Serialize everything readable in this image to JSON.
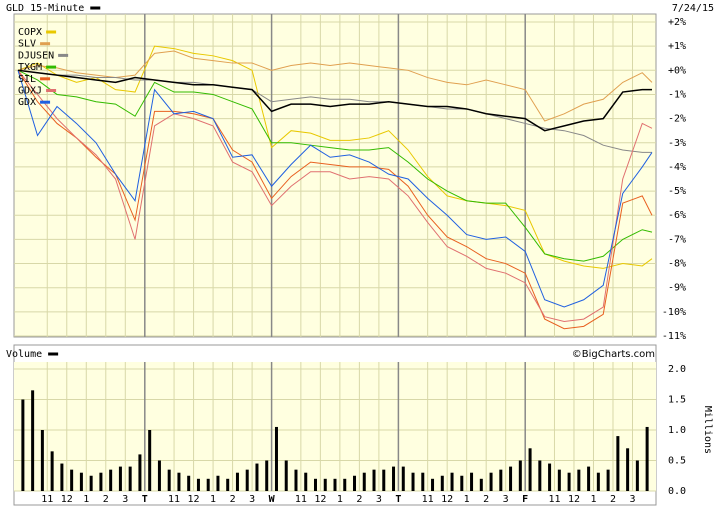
{
  "chart_data": [
    {
      "type": "line",
      "title": "GLD 15-Minute",
      "date": "7/24/15",
      "xlim": [
        0,
        32.5
      ],
      "ylim": [
        -11,
        2
      ],
      "grid": true,
      "yticks": [
        {
          "value": 2,
          "label": "+2%"
        },
        {
          "value": 1,
          "label": "+1%"
        },
        {
          "value": 0,
          "label": "+0%"
        },
        {
          "value": -1,
          "label": "-1%"
        },
        {
          "value": -2,
          "label": "-2%"
        },
        {
          "value": -3,
          "label": "-3%"
        },
        {
          "value": -4,
          "label": "-4%"
        },
        {
          "value": -5,
          "label": "-5%"
        },
        {
          "value": -6,
          "label": "-6%"
        },
        {
          "value": -7,
          "label": "-7%"
        },
        {
          "value": -8,
          "label": "-8%"
        },
        {
          "value": -9,
          "label": "-9%"
        },
        {
          "value": -10,
          "label": "-10%"
        },
        {
          "value": -11,
          "label": "-11%"
        }
      ],
      "x": [
        0,
        1,
        2,
        3,
        4,
        5,
        6,
        7,
        8,
        9,
        10,
        11,
        12,
        13,
        14,
        15,
        16,
        17,
        18,
        19,
        20,
        21,
        22,
        23,
        24,
        25,
        26,
        27,
        28,
        29,
        30,
        31,
        32,
        32.5
      ],
      "series": [
        {
          "name": "COPX",
          "color": "#e8c800",
          "values": [
            0,
            0.3,
            -0.2,
            -0.5,
            -0.3,
            -0.8,
            -0.9,
            1.0,
            0.9,
            0.7,
            0.6,
            0.4,
            0.0,
            -3.2,
            -2.5,
            -2.6,
            -2.9,
            -2.9,
            -2.8,
            -2.5,
            -3.3,
            -4.4,
            -5.2,
            -5.4,
            -5.5,
            -5.6,
            -5.8,
            -7.6,
            -7.9,
            -8.1,
            -8.2,
            -8.0,
            -8.1,
            -7.8
          ]
        },
        {
          "name": "SLV",
          "color": "#e0a050",
          "values": [
            0,
            0.2,
            0.1,
            -0.1,
            -0.2,
            -0.3,
            -0.2,
            0.7,
            0.8,
            0.5,
            0.4,
            0.3,
            0.3,
            0.0,
            0.2,
            0.3,
            0.2,
            0.3,
            0.2,
            0.1,
            0.0,
            -0.3,
            -0.5,
            -0.6,
            -0.4,
            -0.6,
            -0.8,
            -2.1,
            -1.8,
            -1.4,
            -1.2,
            -0.5,
            -0.1,
            -0.5
          ]
        },
        {
          "name": "DJUSEN",
          "color": "#888888",
          "values": [
            0,
            -0.1,
            -0.2,
            -0.2,
            -0.3,
            -0.3,
            -0.4,
            -0.4,
            -0.5,
            -0.5,
            -0.6,
            -0.7,
            -0.8,
            -1.3,
            -1.2,
            -1.1,
            -1.2,
            -1.2,
            -1.3,
            -1.3,
            -1.4,
            -1.5,
            -1.6,
            -1.6,
            -1.8,
            -2.0,
            -2.2,
            -2.4,
            -2.5,
            -2.7,
            -3.1,
            -3.3,
            -3.4,
            -3.4
          ]
        },
        {
          "name": "TXGM",
          "color": "#33bb00",
          "values": [
            0,
            -0.4,
            -1.0,
            -1.1,
            -1.3,
            -1.4,
            -1.9,
            -0.5,
            -0.9,
            -0.9,
            -1.0,
            -1.3,
            -1.6,
            -3.0,
            -3.0,
            -3.1,
            -3.2,
            -3.3,
            -3.3,
            -3.2,
            -3.8,
            -4.5,
            -5.0,
            -5.4,
            -5.5,
            -5.5,
            -6.5,
            -7.6,
            -7.8,
            -7.9,
            -7.7,
            -7.0,
            -6.6,
            -6.7
          ]
        },
        {
          "name": "SIL",
          "color": "#e86020",
          "values": [
            0,
            -1.3,
            -2.2,
            -2.8,
            -3.6,
            -4.3,
            -6.2,
            -1.7,
            -1.7,
            -1.8,
            -2.0,
            -3.3,
            -3.8,
            -5.3,
            -4.4,
            -3.8,
            -3.9,
            -4.0,
            -4.0,
            -4.1,
            -4.8,
            -6.0,
            -6.9,
            -7.3,
            -7.8,
            -8.0,
            -8.4,
            -10.3,
            -10.7,
            -10.6,
            -10.1,
            -5.5,
            -5.2,
            -6.0
          ]
        },
        {
          "name": "GDXJ",
          "color": "#e07070",
          "values": [
            0,
            -1.0,
            -2.0,
            -2.8,
            -3.5,
            -4.5,
            -7.0,
            -2.3,
            -1.8,
            -2.0,
            -2.3,
            -3.8,
            -4.2,
            -5.6,
            -4.8,
            -4.2,
            -4.2,
            -4.5,
            -4.4,
            -4.5,
            -5.2,
            -6.3,
            -7.3,
            -7.7,
            -8.2,
            -8.4,
            -8.8,
            -10.2,
            -10.4,
            -10.3,
            -9.8,
            -4.5,
            -2.2,
            -2.4
          ]
        },
        {
          "name": "GDX",
          "color": "#2060e0",
          "values": [
            0,
            -2.7,
            -1.5,
            -2.2,
            -3.0,
            -4.3,
            -5.4,
            -0.8,
            -1.8,
            -1.7,
            -2.0,
            -3.6,
            -3.5,
            -4.8,
            -3.9,
            -3.1,
            -3.6,
            -3.5,
            -3.8,
            -4.3,
            -4.5,
            -5.3,
            -6.0,
            -6.8,
            -7.0,
            -6.9,
            -7.5,
            -9.5,
            -9.8,
            -9.5,
            -8.9,
            -5.1,
            -4.0,
            -3.4
          ]
        },
        {
          "color": "#000000",
          "values": [
            0,
            -0.1,
            -0.2,
            -0.3,
            -0.4,
            -0.5,
            -0.3,
            -0.4,
            -0.5,
            -0.6,
            -0.6,
            -0.7,
            -0.8,
            -1.7,
            -1.4,
            -1.4,
            -1.5,
            -1.4,
            -1.4,
            -1.3,
            -1.4,
            -1.5,
            -1.5,
            -1.6,
            -1.8,
            -1.9,
            -2.0,
            -2.5,
            -2.3,
            -2.1,
            -2.0,
            -0.9,
            -0.8,
            -0.8
          ]
        }
      ]
    },
    {
      "type": "bar",
      "title": "Volume",
      "source": "©BigCharts.com",
      "ylabel": "Millions",
      "color": "#000000",
      "xlim": [
        0,
        32.5
      ],
      "ylim": [
        0,
        2
      ],
      "grid": true,
      "yticks": [
        {
          "value": 2,
          "label": "2.0"
        },
        {
          "value": 1.5,
          "label": "1.5"
        },
        {
          "value": 1,
          "label": "1.0"
        },
        {
          "value": 0.5,
          "label": "0.5"
        },
        {
          "value": 0,
          "label": "0.0"
        }
      ],
      "xticks": [
        {
          "value": 1.5,
          "label": "11"
        },
        {
          "value": 2.5,
          "label": "12"
        },
        {
          "value": 3.5,
          "label": "1"
        },
        {
          "value": 4.5,
          "label": "2"
        },
        {
          "value": 5.5,
          "label": "3"
        },
        {
          "value": 6.5,
          "label": "T"
        },
        {
          "value": 8,
          "label": "11"
        },
        {
          "value": 9,
          "label": "12"
        },
        {
          "value": 10,
          "label": "1"
        },
        {
          "value": 11,
          "label": "2"
        },
        {
          "value": 12,
          "label": "3"
        },
        {
          "value": 13,
          "label": "W"
        },
        {
          "value": 14.5,
          "label": "11"
        },
        {
          "value": 15.5,
          "label": "12"
        },
        {
          "value": 16.5,
          "label": "1"
        },
        {
          "value": 17.5,
          "label": "2"
        },
        {
          "value": 18.5,
          "label": "3"
        },
        {
          "value": 19.5,
          "label": "T"
        },
        {
          "value": 21,
          "label": "11"
        },
        {
          "value": 22,
          "label": "12"
        },
        {
          "value": 23,
          "label": "1"
        },
        {
          "value": 24,
          "label": "2"
        },
        {
          "value": 25,
          "label": "3"
        },
        {
          "value": 26,
          "label": "F"
        },
        {
          "value": 27.5,
          "label": "11"
        },
        {
          "value": 28.5,
          "label": "12"
        },
        {
          "value": 29.5,
          "label": "1"
        },
        {
          "value": 30.5,
          "label": "2"
        },
        {
          "value": 31.5,
          "label": "3"
        }
      ],
      "x": [
        0.25,
        0.75,
        1.25,
        1.75,
        2.25,
        2.75,
        3.25,
        3.75,
        4.25,
        4.75,
        5.25,
        5.75,
        6.25,
        6.75,
        7.25,
        7.75,
        8.25,
        8.75,
        9.25,
        9.75,
        10.25,
        10.75,
        11.25,
        11.75,
        12.25,
        12.75,
        13.25,
        13.75,
        14.25,
        14.75,
        15.25,
        15.75,
        16.25,
        16.75,
        17.25,
        17.75,
        18.25,
        18.75,
        19.25,
        19.75,
        20.25,
        20.75,
        21.25,
        21.75,
        22.25,
        22.75,
        23.25,
        23.75,
        24.25,
        24.75,
        25.25,
        25.75,
        26.25,
        26.75,
        27.25,
        27.75,
        28.25,
        28.75,
        29.25,
        29.75,
        30.25,
        30.75,
        31.25,
        31.75,
        32.25
      ],
      "values": [
        1.5,
        1.65,
        1.0,
        0.65,
        0.45,
        0.35,
        0.3,
        0.25,
        0.3,
        0.35,
        0.4,
        0.4,
        0.6,
        1.0,
        0.5,
        0.35,
        0.3,
        0.25,
        0.2,
        0.2,
        0.25,
        0.2,
        0.3,
        0.35,
        0.45,
        0.5,
        1.05,
        0.5,
        0.35,
        0.3,
        0.2,
        0.2,
        0.2,
        0.2,
        0.25,
        0.3,
        0.35,
        0.35,
        0.4,
        0.4,
        0.3,
        0.3,
        0.2,
        0.25,
        0.3,
        0.25,
        0.3,
        0.2,
        0.3,
        0.35,
        0.4,
        0.5,
        0.7,
        0.5,
        0.45,
        0.35,
        0.3,
        0.35,
        0.4,
        0.3,
        0.35,
        0.9,
        0.7,
        0.5,
        1.05
      ]
    }
  ]
}
